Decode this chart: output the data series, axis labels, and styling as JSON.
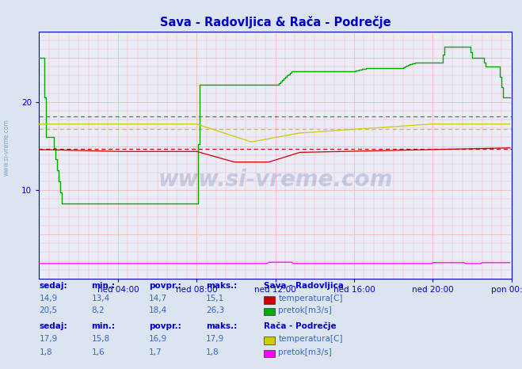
{
  "title": "Sava - Radovljica & Rača - Podrečje",
  "title_color": "#0000cc",
  "bg_color": "#dce4f0",
  "plot_bg_color": "#eaecf8",
  "grid_color": "#ffaaaa",
  "xlim": [
    0,
    288
  ],
  "ylim": [
    0,
    28
  ],
  "yticks": [
    10,
    20
  ],
  "xtick_labels": [
    "ned 04:00",
    "ned 08:00",
    "ned 12:00",
    "ned 16:00",
    "ned 20:00",
    "pon 00:00"
  ],
  "xtick_positions": [
    48,
    96,
    144,
    192,
    240,
    288
  ],
  "watermark": "www.si-vreme.com",
  "watermark_color": "#1a3a8a",
  "watermark_alpha": 0.18,
  "sava_temp_color": "#cc0000",
  "sava_flow_color": "#00aa00",
  "raca_temp_color": "#cccc00",
  "raca_flow_color": "#ff00ff",
  "avg_sava_temp": 14.7,
  "avg_sava_flow": 18.4,
  "avg_raca_temp": 16.9,
  "axis_color": "#0000cc",
  "tick_color": "#0000cc",
  "table_header_color": "#0000cc",
  "table_value_color": "#3366cc",
  "left_label": "www.si-vreme.com",
  "left_label_color": "#7799bb"
}
